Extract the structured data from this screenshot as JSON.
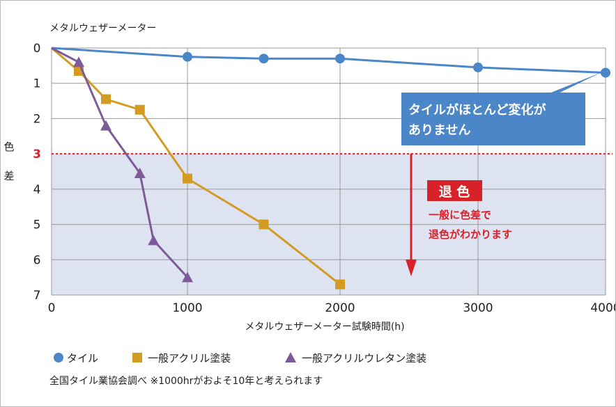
{
  "chart_data": {
    "type": "line",
    "title": "メタルウェザーメーター",
    "xlabel": "メタルウェザーメーター試験時間(h)",
    "ylabel": "色差",
    "x_ticks": [
      0,
      1000,
      2000,
      3000,
      4000
    ],
    "y_ticks": [
      0,
      1,
      2,
      3,
      4,
      5,
      6,
      7
    ],
    "xlim": [
      0,
      4000
    ],
    "ylim": [
      0,
      7
    ],
    "threshold": {
      "value": 3,
      "label": "3"
    },
    "series": [
      {
        "name": "タイル",
        "marker": "circle",
        "color": "#4a86c8",
        "x": [
          0,
          1000,
          1500,
          2000,
          3000,
          4000
        ],
        "y": [
          0,
          0.25,
          0.3,
          0.3,
          0.55,
          0.7
        ]
      },
      {
        "name": "一般アクリル塗装",
        "marker": "square",
        "color": "#d49b22",
        "x": [
          0,
          200,
          400,
          650,
          1000,
          1500,
          2000
        ],
        "y": [
          0,
          0.65,
          1.45,
          1.75,
          3.7,
          5.0,
          6.7
        ]
      },
      {
        "name": "一般アクリルウレタン塗装",
        "marker": "triangle",
        "color": "#7d5a98",
        "x": [
          0,
          200,
          400,
          650,
          750,
          1000
        ],
        "y": [
          0,
          0.4,
          2.2,
          3.55,
          5.45,
          6.5
        ]
      }
    ],
    "annotations": {
      "tile_callout": [
        "タイルがほとんど変化が",
        "ありません"
      ],
      "fade_title": "退 色",
      "fade_text": [
        "一般に色差で",
        "退色がわかります"
      ]
    }
  },
  "footnote": "全国タイル業協会調べ ※1000hrがおよそ10年と考えられます",
  "colors": {
    "grid": "#9a9a9a",
    "shade": "#dde3f0",
    "threshold": "#d8222a",
    "callout": "#4a86c8"
  }
}
